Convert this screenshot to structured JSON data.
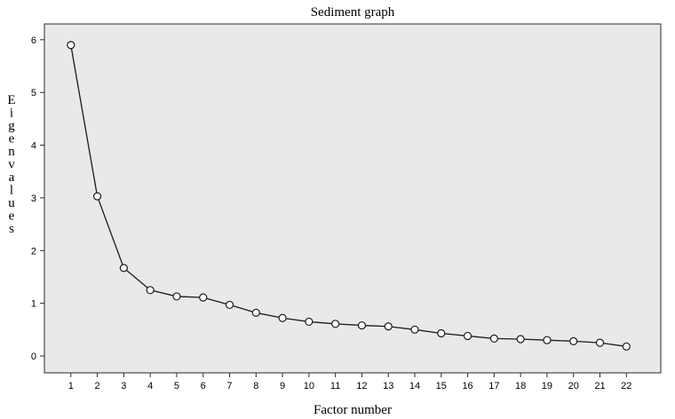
{
  "colors": {
    "plot_background": "#e9e9e9",
    "line": "#1a1a1a",
    "marker_fill": "#ffffff",
    "frame": "#2b2b2b"
  },
  "chart_data": {
    "type": "line",
    "title": "Sediment graph",
    "xlabel": "Factor number",
    "ylabel": "Eigenvalues",
    "x": [
      1,
      2,
      3,
      4,
      5,
      6,
      7,
      8,
      9,
      10,
      11,
      12,
      13,
      14,
      15,
      16,
      17,
      18,
      19,
      20,
      21,
      22
    ],
    "x_tick_labels": [
      "1",
      "2",
      "3",
      "4",
      "5",
      "6",
      "7",
      "8",
      "9",
      "10",
      "11",
      "12",
      "13",
      "14",
      "15",
      "16",
      "17",
      "18",
      "19",
      "20",
      "21",
      "22"
    ],
    "y_ticks": [
      0,
      1,
      2,
      3,
      4,
      5,
      6
    ],
    "y_tick_labels": [
      "0",
      "1",
      "2",
      "3",
      "4",
      "5",
      "6"
    ],
    "series": [
      {
        "values": [
          5.9,
          3.03,
          1.67,
          1.25,
          1.13,
          1.11,
          0.97,
          0.82,
          0.72,
          0.65,
          0.61,
          0.58,
          0.56,
          0.5,
          0.43,
          0.38,
          0.33,
          0.32,
          0.3,
          0.28,
          0.25,
          0.18
        ],
        "marker": "open-circle"
      }
    ],
    "xlim": [
      0,
      23.3
    ],
    "ylim": [
      -0.32,
      6.3
    ],
    "grid": false,
    "legend": "none"
  }
}
